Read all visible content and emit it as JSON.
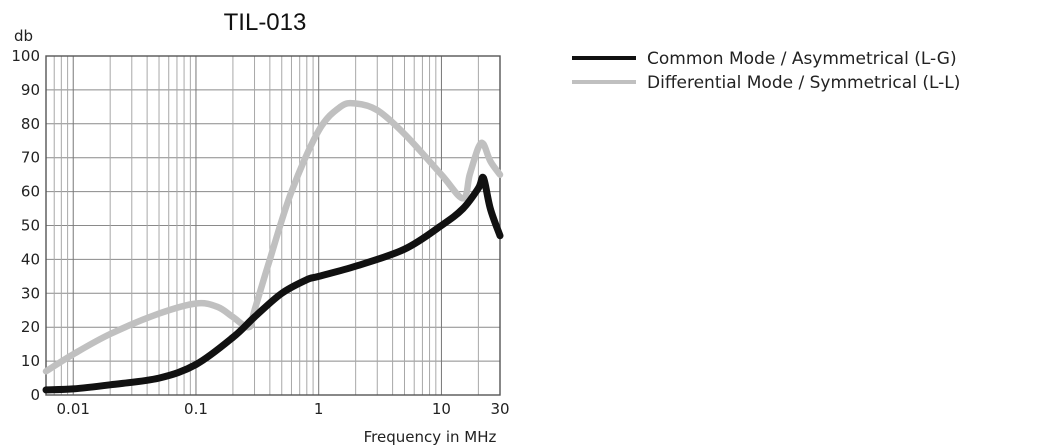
{
  "chart_data": {
    "type": "line",
    "title": "TIL-013",
    "xlabel": "Frequency in MHz",
    "ylabel": "db",
    "x_scale": "log",
    "xlim": [
      0.006,
      30
    ],
    "ylim": [
      0,
      100
    ],
    "x_tick_labels": [
      "0.01",
      "0.1",
      "1",
      "10",
      "30"
    ],
    "x_tick_values": [
      0.01,
      0.1,
      1,
      10,
      30
    ],
    "y_ticks": [
      0,
      10,
      20,
      30,
      40,
      50,
      60,
      70,
      80,
      90,
      100
    ],
    "grid": true,
    "legend_position": "right",
    "series": [
      {
        "name": "Common Mode / Asymmetrical (L-G)",
        "color": "#111111",
        "x": [
          0.006,
          0.01,
          0.02,
          0.05,
          0.1,
          0.2,
          0.3,
          0.5,
          0.8,
          1,
          2,
          5,
          10,
          15,
          20,
          22,
          25,
          30
        ],
        "y": [
          1.5,
          1.8,
          3,
          5,
          9,
          17,
          23,
          30,
          34,
          35,
          38,
          43,
          50,
          55,
          61,
          64,
          55,
          47
        ]
      },
      {
        "name": "Differential Mode / Symmetrical (L-L)",
        "color": "#c0c0c0",
        "x": [
          0.006,
          0.01,
          0.02,
          0.05,
          0.1,
          0.15,
          0.2,
          0.27,
          0.3,
          0.4,
          0.6,
          1,
          1.5,
          2,
          3,
          5,
          10,
          15,
          17,
          20,
          22,
          25,
          30
        ],
        "y": [
          7,
          12,
          18,
          24,
          27,
          26,
          23,
          20,
          25,
          40,
          60,
          78,
          85,
          86,
          84,
          77,
          65,
          58,
          65,
          73,
          74,
          69,
          65
        ]
      }
    ]
  }
}
